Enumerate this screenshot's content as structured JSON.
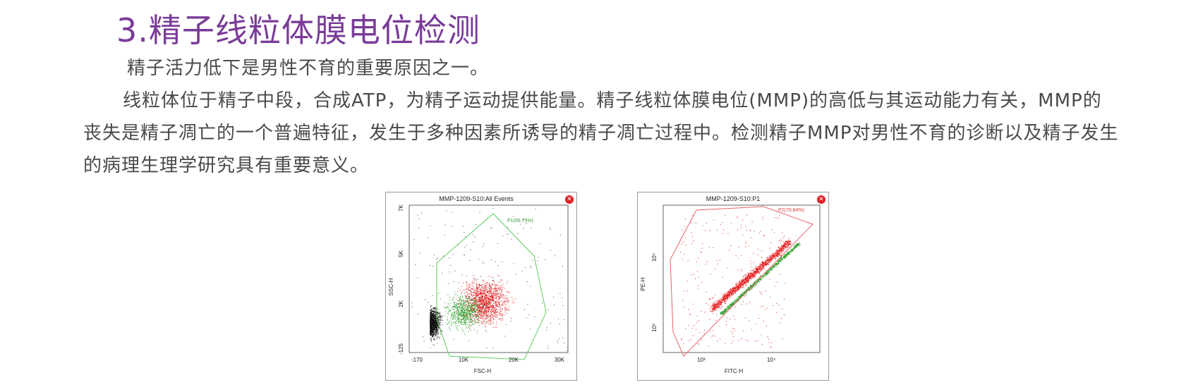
{
  "title": "3.精子线粒体膜电位检测",
  "paragraphs": [
    "精子活力低下是男性不育的重要原因之一。",
    "线粒体位于精子中段，合成ATP，为精子运动提供能量。精子线粒体膜电位(MMP)的高低与其运动能力有关，MMP的丧失是精子凋亡的一个普遍特征，发生于多种因素所诱导的精子凋亡过程中。检测精子MMP对男性不育的诊断以及精子发生的病理生理学研究具有重要意义。"
  ],
  "plots": [
    {
      "title": "MMP-1209-S10:All Events",
      "xlabel": "FSC-H",
      "ylabel": "SSC-H",
      "x_ticks": [
        "-170",
        "10K",
        "20K",
        "30K"
      ],
      "y_ticks": [
        "7K",
        "5K",
        "2K",
        "-125"
      ],
      "gate_label": "P1(66.75%)",
      "gate_color": "#5fca5f"
    },
    {
      "title": "MMP-1209-S10:P1",
      "xlabel": "FITC-H",
      "ylabel": "PE-H",
      "x_ticks": [
        "10³",
        "10⁴"
      ],
      "y_ticks": [
        "10⁴",
        "10³"
      ],
      "gate_label": "P2(70.84%)",
      "gate_color": "#e8636b"
    }
  ],
  "icons": {
    "close": "close-icon"
  },
  "colors": {
    "title": "#7a3c98",
    "text": "#4a4a4a",
    "dots_red": "#e41a1c",
    "dots_green": "#2ca02c",
    "dots_black": "#111111"
  }
}
